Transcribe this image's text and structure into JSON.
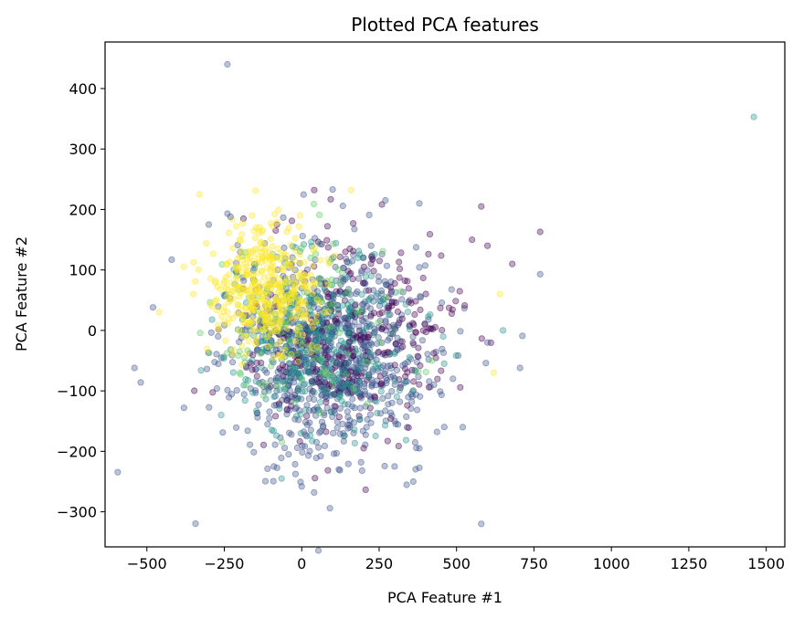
{
  "chart_data": {
    "type": "scatter",
    "title": "Plotted PCA features",
    "xlabel": "PCA Feature #1",
    "ylabel": "PCA Feature #2",
    "xlim": [
      -635,
      1560
    ],
    "ylim": [
      -358,
      477
    ],
    "xticks": [
      -500,
      -250,
      0,
      250,
      500,
      750,
      1000,
      1250,
      1500
    ],
    "xtick_labels": [
      "−500",
      "−250",
      "0",
      "250",
      "500",
      "750",
      "1000",
      "1250",
      "1500"
    ],
    "yticks": [
      -300,
      -200,
      -100,
      0,
      100,
      200,
      300,
      400
    ],
    "ytick_labels": [
      "−300",
      "−200",
      "−100",
      "0",
      "100",
      "200",
      "300",
      "400"
    ],
    "grid": false,
    "marker_alpha": 0.35,
    "colormap": "viridis",
    "class_colors": [
      "#440154",
      "#3b528b",
      "#21918c",
      "#5ec962",
      "#fde725"
    ],
    "points": [
      [
        -240,
        440,
        1
      ],
      [
        1460,
        353,
        2
      ],
      [
        580,
        -320,
        1
      ],
      [
        40,
        -268,
        1
      ],
      [
        0,
        -258,
        1
      ],
      [
        -540,
        -62,
        1
      ],
      [
        -520,
        -86,
        1
      ],
      [
        705,
        -62,
        1
      ],
      [
        770,
        93,
        1
      ],
      [
        770,
        163,
        0
      ],
      [
        -460,
        30,
        4
      ],
      [
        -420,
        117,
        1
      ],
      [
        -380,
        -128,
        1
      ],
      [
        -330,
        225,
        4
      ],
      [
        620,
        -70,
        4
      ],
      [
        680,
        110,
        0
      ],
      [
        580,
        205,
        0
      ],
      [
        -230,
        188,
        1
      ],
      [
        100,
        233,
        1
      ],
      [
        160,
        232,
        4
      ],
      [
        -300,
        175,
        1
      ],
      [
        -160,
        190,
        4
      ],
      [
        270,
        215,
        1
      ],
      [
        380,
        210,
        1
      ],
      [
        550,
        150,
        0
      ],
      [
        640,
        60,
        4
      ],
      [
        600,
        -20,
        1
      ],
      [
        650,
        0,
        2
      ],
      [
        360,
        -250,
        1
      ],
      [
        300,
        -225,
        1
      ],
      [
        120,
        -230,
        1
      ],
      [
        -90,
        -225,
        1
      ],
      [
        200,
        -195,
        0
      ],
      [
        380,
        -195,
        1
      ],
      [
        520,
        -160,
        1
      ],
      [
        460,
        -55,
        2
      ],
      [
        -260,
        -140,
        2
      ],
      [
        -480,
        38,
        1
      ],
      [
        -350,
        60,
        4
      ],
      [
        600,
        140,
        0
      ]
    ]
  }
}
